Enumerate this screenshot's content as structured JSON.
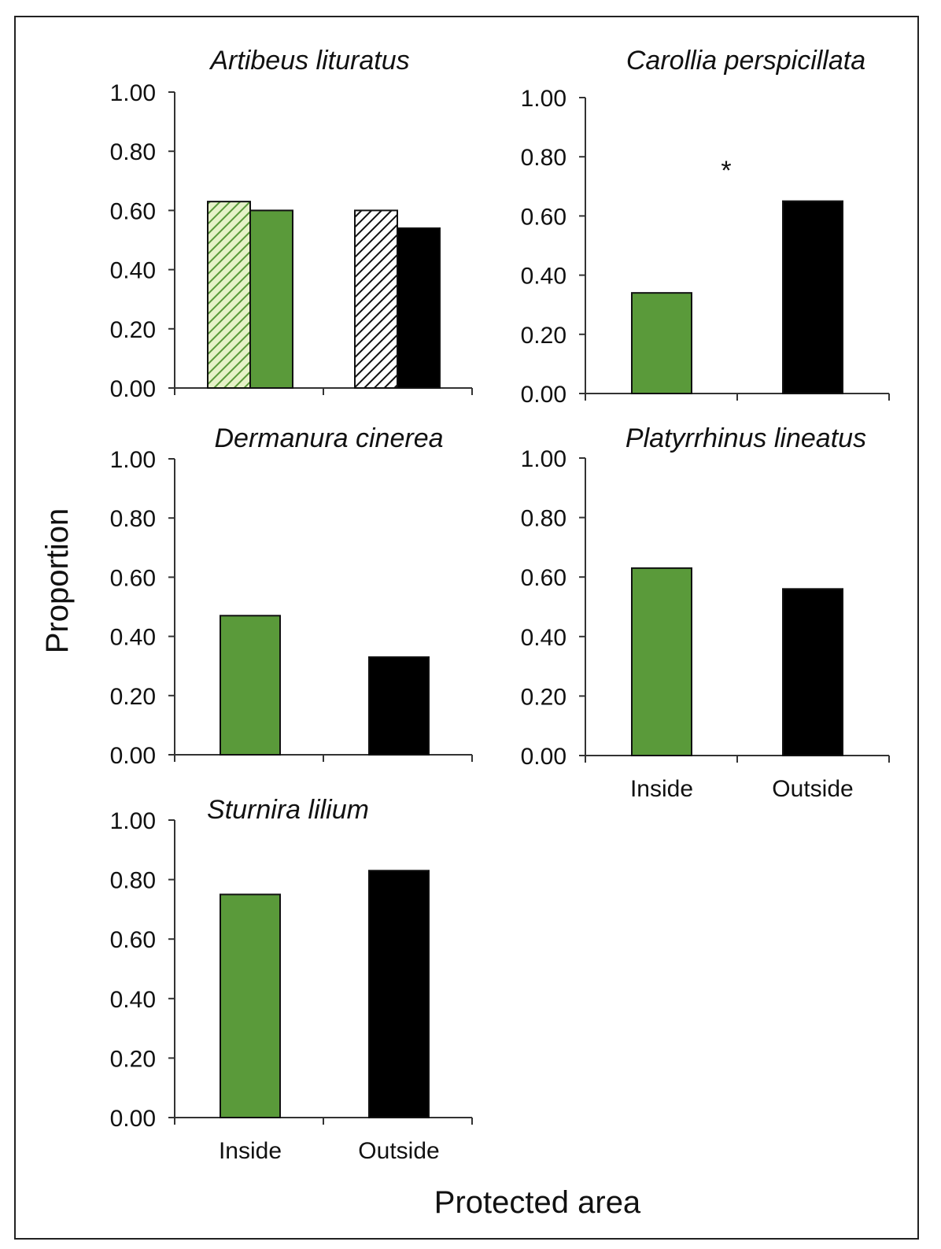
{
  "colors": {
    "inside": "#5a9a3a",
    "outside": "#000000",
    "axis": "#333333",
    "hatch_inside_bg": "#e6f2c8",
    "hatch_outside_bg": "#ffffff"
  },
  "axis_titles": {
    "y": "Proportion",
    "x": "Protected area"
  },
  "chart_data": [
    {
      "type": "bar",
      "title": "Artibeus lituratus",
      "ylim": [
        0,
        1
      ],
      "yticks": [
        "0.00",
        "0.20",
        "0.40",
        "0.60",
        "0.80",
        "1.00"
      ],
      "categories": [
        "Inside",
        "Outside"
      ],
      "category_labels_shown": false,
      "series": [
        {
          "style": "hatched",
          "values": [
            0.63,
            0.6
          ]
        },
        {
          "style": "solid",
          "values": [
            0.6,
            0.54
          ]
        }
      ],
      "annotation": ""
    },
    {
      "type": "bar",
      "title": "Carollia perspicillata",
      "ylim": [
        0,
        1
      ],
      "yticks": [
        "0.00",
        "0.20",
        "0.40",
        "0.60",
        "0.80",
        "1.00"
      ],
      "categories": [
        "Inside",
        "Outside"
      ],
      "category_labels_shown": false,
      "series": [
        {
          "style": "solid",
          "values": [
            0.34,
            0.65
          ]
        }
      ],
      "annotation": "*"
    },
    {
      "type": "bar",
      "title": "Dermanura cinerea",
      "ylim": [
        0,
        1
      ],
      "yticks": [
        "0.00",
        "0.20",
        "0.40",
        "0.60",
        "0.80",
        "1.00"
      ],
      "categories": [
        "Inside",
        "Outside"
      ],
      "category_labels_shown": false,
      "series": [
        {
          "style": "solid",
          "values": [
            0.47,
            0.33
          ]
        }
      ],
      "annotation": ""
    },
    {
      "type": "bar",
      "title": "Platyrrhinus lineatus",
      "ylim": [
        0,
        1
      ],
      "yticks": [
        "0.00",
        "0.20",
        "0.40",
        "0.60",
        "0.80",
        "1.00"
      ],
      "categories": [
        "Inside",
        "Outside"
      ],
      "category_labels_shown": true,
      "series": [
        {
          "style": "solid",
          "values": [
            0.63,
            0.56
          ]
        }
      ],
      "annotation": ""
    },
    {
      "type": "bar",
      "title": "Sturnira lilium",
      "ylim": [
        0,
        1
      ],
      "yticks": [
        "0.00",
        "0.20",
        "0.40",
        "0.60",
        "0.80",
        "1.00"
      ],
      "categories": [
        "Inside",
        "Outside"
      ],
      "category_labels_shown": true,
      "series": [
        {
          "style": "solid",
          "values": [
            0.75,
            0.83
          ]
        }
      ],
      "annotation": ""
    }
  ]
}
